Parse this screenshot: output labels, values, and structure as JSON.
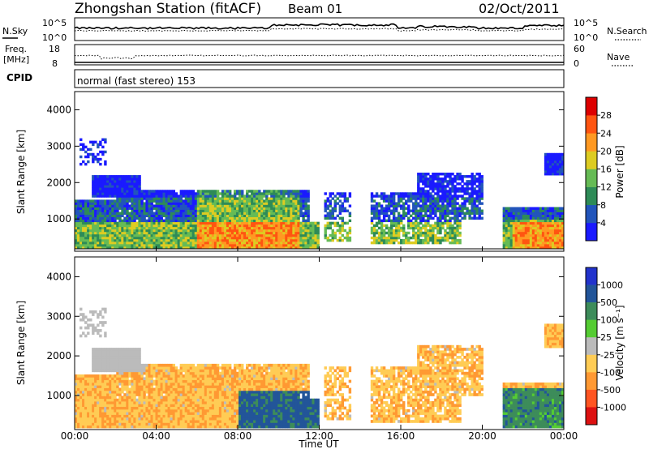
{
  "header": {
    "title": "Zhongshan Station (fitACF)",
    "beam": "Beam 01",
    "date": "02/Oct/2011"
  },
  "summary_panels": {
    "nsky": {
      "label": "N.Sky",
      "tick_top": "10^5",
      "tick_bottom": "10^0",
      "right_label": "N.Search",
      "right_tick_top": "10^5",
      "right_tick_bottom": "10^0",
      "level": 0.55
    },
    "freq": {
      "label_line1": "Freq.",
      "label_line2": "[MHz]",
      "tick_top": "18",
      "tick_bottom": "8",
      "right_label": "Nave",
      "right_tick_top": "60",
      "right_tick_bottom": "0",
      "level": 0.4
    },
    "cpid": {
      "label": "CPID",
      "text": "normal (fast stereo) 153"
    }
  },
  "chart_data": [
    {
      "type": "heatmap",
      "name": "power",
      "ylabel": "Slant Range [km]",
      "yticks": [
        "1000",
        "2000",
        "3000",
        "4000"
      ],
      "ylim": [
        180,
        4500
      ],
      "xlim": [
        0,
        24
      ],
      "colorbar": {
        "label": "Power [dB]",
        "ticks": [
          "4",
          "8",
          "12",
          "16",
          "20",
          "24",
          "28"
        ],
        "colors": [
          "#1a1aff",
          "#2255bb",
          "#2e8b57",
          "#66bb55",
          "#ddcc22",
          "#ff9922",
          "#ff5511",
          "#dd0000"
        ]
      }
    },
    {
      "type": "heatmap",
      "name": "velocity",
      "ylabel": "Slant Range [km]",
      "yticks": [
        "1000",
        "2000",
        "3000",
        "4000"
      ],
      "ylim": [
        180,
        4500
      ],
      "xlim": [
        0,
        24
      ],
      "xlabel": "Time UT",
      "xticks": [
        "00:00",
        "04:00",
        "08:00",
        "12:00",
        "16:00",
        "20:00",
        "00:00"
      ],
      "colorbar": {
        "label": "Velocity [m s⁻¹]",
        "ticks": [
          "1000",
          "500",
          "100",
          "25",
          "-25",
          "-100",
          "-500",
          "-1000"
        ],
        "colors": [
          "#2233cc",
          "#225599",
          "#3d8c5a",
          "#55cc33",
          "#bbbbbb",
          "#ffcc55",
          "#ff9933",
          "#ff5522",
          "#dd1111"
        ]
      }
    }
  ]
}
